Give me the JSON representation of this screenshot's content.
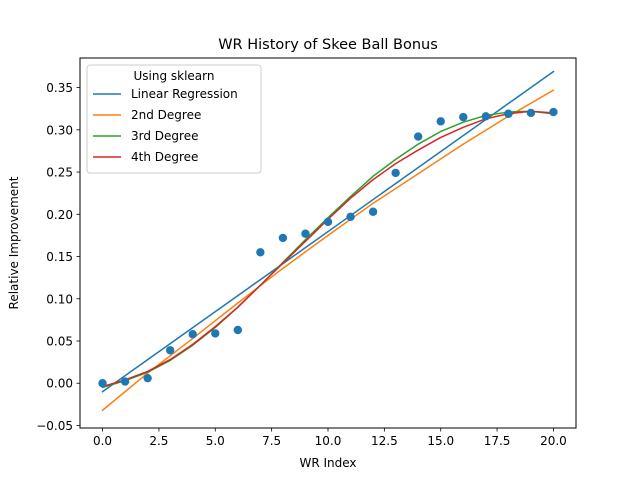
{
  "chart_data": {
    "type": "scatter",
    "title": "WR History of Skee Ball Bonus",
    "xlabel": "WR Index",
    "ylabel": "Relative Improvement",
    "xlim": [
      -1,
      21
    ],
    "ylim": [
      -0.053,
      0.385
    ],
    "xticks": [
      0.0,
      2.5,
      5.0,
      7.5,
      10.0,
      12.5,
      15.0,
      17.5,
      20.0
    ],
    "xtick_labels": [
      "0.0",
      "2.5",
      "5.0",
      "7.5",
      "10.0",
      "12.5",
      "15.0",
      "17.5",
      "20.0"
    ],
    "yticks": [
      -0.05,
      0.0,
      0.05,
      0.1,
      0.15,
      0.2,
      0.25,
      0.3,
      0.35
    ],
    "ytick_labels": [
      "−0.05",
      "0.00",
      "0.05",
      "0.10",
      "0.15",
      "0.20",
      "0.25",
      "0.30",
      "0.35"
    ],
    "grid": false,
    "legend": {
      "title": "Using sklearn",
      "position": "top-left",
      "entries": [
        "Linear Regression",
        "2nd Degree",
        "3rd Degree",
        "4th Degree"
      ]
    },
    "scatter": {
      "color": "#1f77b4",
      "x": [
        0,
        1,
        2,
        3,
        4,
        5,
        6,
        7,
        8,
        9,
        10,
        11,
        12,
        13,
        14,
        15,
        16,
        17,
        18,
        19,
        20
      ],
      "y": [
        0.0,
        0.002,
        0.006,
        0.039,
        0.058,
        0.059,
        0.063,
        0.155,
        0.172,
        0.177,
        0.191,
        0.197,
        0.203,
        0.249,
        0.292,
        0.31,
        0.315,
        0.316,
        0.319,
        0.32,
        0.321
      ]
    },
    "series": [
      {
        "name": "Linear Regression",
        "color": "#1f77b4",
        "x": [
          0,
          20
        ],
        "y": [
          -0.01,
          0.369
        ]
      },
      {
        "name": "2nd Degree",
        "color": "#ff7f0e",
        "x": [
          0,
          2,
          4,
          6,
          8,
          10,
          12,
          14,
          16,
          18,
          20
        ],
        "y": [
          -0.032,
          0.012,
          0.053,
          0.095,
          0.136,
          0.175,
          0.213,
          0.248,
          0.283,
          0.316,
          0.347
        ]
      },
      {
        "name": "3rd Degree",
        "color": "#2ca02c",
        "x": [
          0,
          1,
          2,
          3,
          4,
          5,
          6,
          7,
          8,
          9,
          10,
          11,
          12,
          13,
          14,
          15,
          16,
          17,
          18,
          19,
          20
        ],
        "y": [
          -0.005,
          0.003,
          0.013,
          0.027,
          0.045,
          0.066,
          0.09,
          0.116,
          0.143,
          0.17,
          0.196,
          0.221,
          0.245,
          0.265,
          0.283,
          0.298,
          0.309,
          0.317,
          0.321,
          0.322,
          0.319
        ]
      },
      {
        "name": "4th Degree",
        "color": "#d62728",
        "x": [
          0,
          1,
          2,
          3,
          4,
          5,
          6,
          7,
          8,
          9,
          10,
          11,
          12,
          13,
          14,
          15,
          16,
          17,
          18,
          19,
          20
        ],
        "y": [
          -0.004,
          0.004,
          0.014,
          0.028,
          0.046,
          0.067,
          0.09,
          0.116,
          0.142,
          0.168,
          0.194,
          0.219,
          0.241,
          0.26,
          0.276,
          0.291,
          0.303,
          0.313,
          0.319,
          0.322,
          0.32
        ]
      }
    ]
  }
}
